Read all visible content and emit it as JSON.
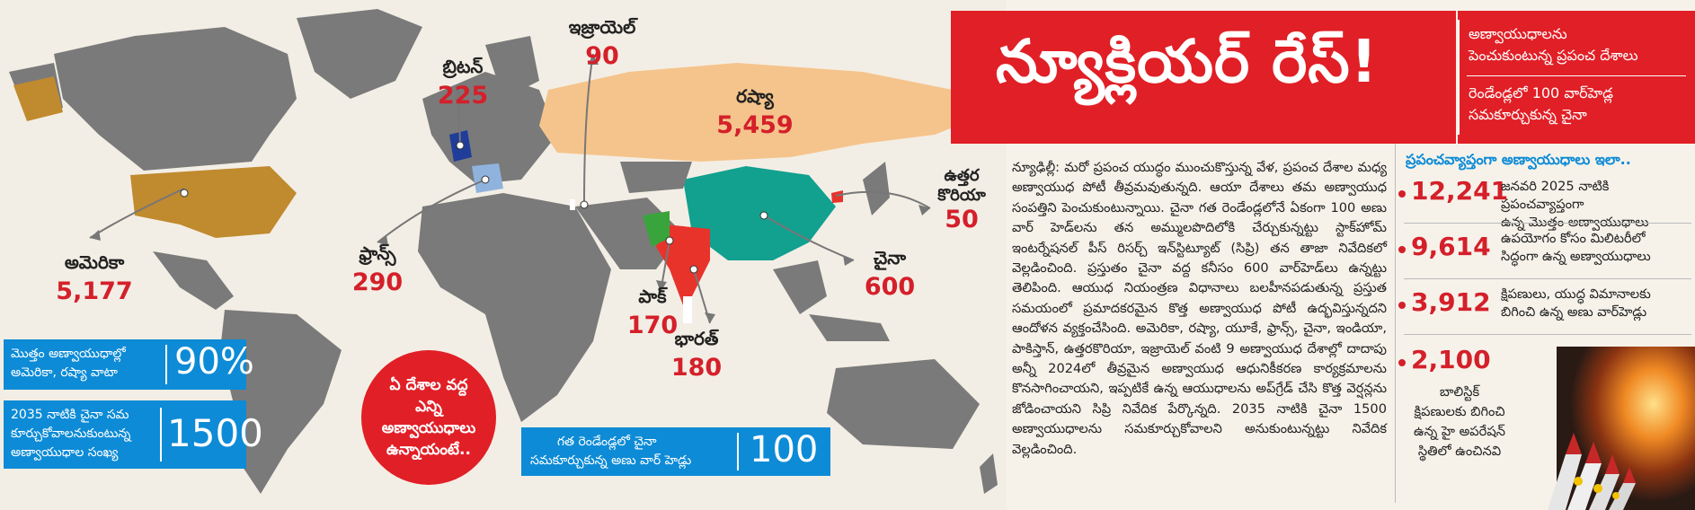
{
  "banner": {
    "title": "న్యూక్లియర్ రేస్!",
    "subtitle_line1": "అణ్వాయుధాలను",
    "subtitle_line2": "పెంచుకుంటున్న ప్రపంచ దేశాలు",
    "subtitle_line3": "రెండేండ్లలో 100 వార్‌హెడ్ల",
    "subtitle_line4": "సమకూర్చుకున్న చైనా"
  },
  "map": {
    "countries": [
      {
        "name": "ఇజ్రాయెల్",
        "value": "90"
      },
      {
        "name": "బ్రిటన్",
        "value": "225"
      },
      {
        "name": "రష్యా",
        "value": "5,459"
      },
      {
        "name": "ఉత్తర కొరియా",
        "value": "50"
      },
      {
        "name": "ఫ్రాన్స్",
        "value": "290"
      },
      {
        "name": "చైనా",
        "value": "600"
      },
      {
        "name": "అమెరికా",
        "value": "5,177"
      },
      {
        "name": "పాక్",
        "value": "170"
      },
      {
        "name": "భారత్",
        "value": "180"
      }
    ],
    "circle_text": "ఏ దేశాల వద్ద ఎన్ని అణ్వాయుధాలు ఉన్నాయంటే..",
    "box1": {
      "text_line1": "మొత్తం అణ్వాయుధాల్లో",
      "text_line2": "అమెరికా, రష్యా వాటా",
      "value": "90%"
    },
    "box2": {
      "text_line1": "2035 నాటికి చైనా సమ",
      "text_line2": "కూర్చుకోవాలనుకుంటున్న",
      "text_line3": "అణ్వాయుధాల సంఖ్య",
      "value": "1500"
    },
    "box3": {
      "text_line1": "గత రెండేండ్లలో చైనా",
      "text_line2": "సమకూర్చుకున్న అణు వార్ హెడ్లు",
      "value": "100"
    }
  },
  "article": {
    "text": "న్యూఢిల్లీ: మరో ప్రపంచ యుద్ధం ముంచుకొస్తున్న వేళ, ప్రపంచ దేశాల మధ్య అణ్వాయుధ పోటీ తీవ్రమవుతున్నది. ఆయా దేశాలు తమ అణ్వాయుధ సంపత్తిని పెంచుకుంటున్నాయి. చైనా గత రెండేండ్లలోనే ఏకంగా 100 అణు వార్ హెడ్‌లను తన అమ్ములపొదిలోకి చేర్చుకున్నట్టు స్టాక్‌హోమ్ ఇంటర్నేషనల్ పీస్ రిసర్చ్ ఇన్‌స్టిట్యూట్ (సిప్రి) తన తాజా నివేదికలో వెల్లడించింది. ప్రస్తుతం చైనా వద్ద కనీసం 600 వార్‌హెడ్‌లు ఉన్నట్టు తెలిపింది. ఆయుధ నియంత్రణ విధానాలు బలహీనపడుతున్న ప్రస్తుత సమయంలో ప్రమాదకరమైన కొత్త అణ్వాయుధ పోటీ ఉద్భవిస్తున్నదని ఆందోళన వ్యక్తంచేసింది. అమెరికా, రష్యా, యూకే, ఫ్రాన్స్, చైనా, ఇండియా, పాకిస్తాన్, ఉత్తరకొరియా, ఇజ్రాయెల్ వంటి 9 అణ్వాయుధ దేశాల్లో దాదాపు అన్నీ 2024లో తీవ్రమైన అణ్వాయుధ ఆధునికీకరణ కార్యక్రమాలను కొనసాగించాయని, ఇప్పటికే ఉన్న ఆయుధాలను అప్‌గ్రేడ్ చేసి కొత్త వెర్షన్లను జోడించాయని సిప్రి నివేదిక పేర్కొన్నది. 2035 నాటికి చైనా 1500 అణ్వాయుధాలను సమకూర్చుకోవాలని అనుకుంటున్నట్టు నివేదిక వెల్లడించింది."
  },
  "stats": {
    "heading": "ప్రపంచవ్యాప్తంగా అణ్వాయుధాలు ఇలా..",
    "items": [
      {
        "value": "12,241",
        "desc_line1": "జనవరి 2025 నాటికి ప్రపంచవ్యాప్తంగా",
        "desc_line2": "ఉన్న మొత్తం అణ్వాయుధాలు"
      },
      {
        "value": "9,614",
        "desc_line1": "ఉపయోగం కోసం మిలిటరీలో",
        "desc_line2": "సిద్ధంగా ఉన్న అణ్వాయుధాలు"
      },
      {
        "value": "3,912",
        "desc_line1": "క్షిపణులు, యుద్ధ విమానాలకు",
        "desc_line2": "బిగించి ఉన్న అణు వార్‌హెడ్లు"
      },
      {
        "value": "2,100",
        "desc": "బాలిస్టిక్ క్షిపణులకు బిగించి ఉన్న హై అపరేషన్ స్థితిలో ఉంచినవి"
      }
    ]
  },
  "colors": {
    "accent_red": "#e11f26",
    "value_red": "#d4202a",
    "box_blue": "#0d8bd6",
    "usa": "#c08a2f",
    "russia": "#f5c48c",
    "china": "#12a08f",
    "india": "#e8332b",
    "pakistan": "#3aa43c",
    "britain": "#1f3d99",
    "france": "#8fb3dd",
    "land": "#7a7a7a"
  }
}
